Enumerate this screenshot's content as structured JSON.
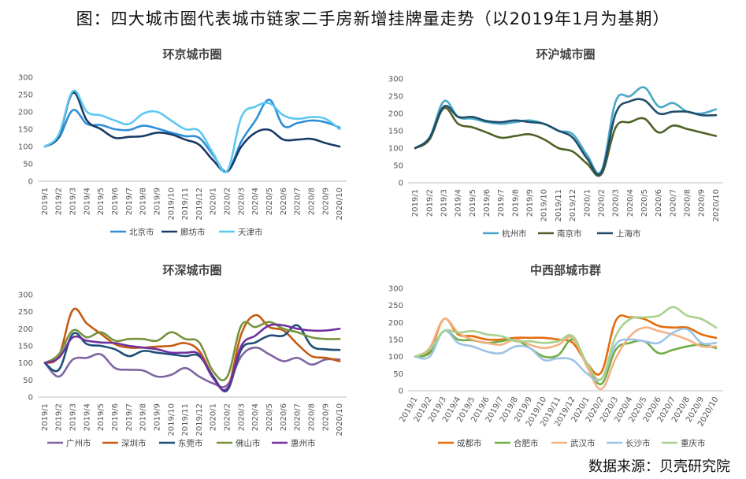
{
  "title": "图：四大城市圈代表城市链家二手房新增挂牌量走势（以2019年1月为基期）",
  "source": "数据来源：贝壳研究院",
  "chart_data": [
    {
      "type": "line",
      "title": "环京城市圈",
      "ylim": [
        0,
        300
      ],
      "yticks": [
        0,
        50,
        100,
        150,
        200,
        250,
        300
      ],
      "categories": [
        "2019/1",
        "2019/2",
        "2019/3",
        "2019/4",
        "2019/5",
        "2019/6",
        "2019/7",
        "2019/8",
        "2019/9",
        "2019/10",
        "2019/11",
        "2019/12",
        "2020/1",
        "2020/2",
        "2020/3",
        "2020/4",
        "2020/5",
        "2020/6",
        "2020/7",
        "2020/8",
        "2020/9",
        "2020/10"
      ],
      "series": [
        {
          "name": "北京市",
          "color": "#2e8fd8",
          "values": [
            100,
            125,
            205,
            165,
            162,
            150,
            148,
            160,
            152,
            140,
            130,
            125,
            75,
            28,
            115,
            175,
            235,
            160,
            168,
            175,
            170,
            155
          ]
        },
        {
          "name": "廊坊市",
          "color": "#1a3a66",
          "values": [
            100,
            130,
            255,
            175,
            150,
            125,
            128,
            130,
            140,
            135,
            120,
            105,
            60,
            28,
            100,
            140,
            148,
            120,
            120,
            122,
            110,
            100
          ]
        },
        {
          "name": "天津市",
          "color": "#5cc8f2",
          "values": [
            100,
            135,
            260,
            200,
            190,
            175,
            165,
            195,
            200,
            175,
            150,
            145,
            80,
            30,
            185,
            215,
            225,
            190,
            180,
            185,
            180,
            150
          ]
        }
      ]
    },
    {
      "type": "line",
      "title": "环沪城市圈",
      "ylim": [
        0,
        300
      ],
      "yticks": [
        0,
        50,
        100,
        150,
        200,
        250,
        300
      ],
      "categories": [
        "2019/1",
        "2019/2",
        "2019/3",
        "2019/4",
        "2019/5",
        "2019/6",
        "2019/7",
        "2019/8",
        "2019/9",
        "2019/10",
        "2019/11",
        "2019/12",
        "2020/1",
        "2020/2",
        "2020/3",
        "2020/4",
        "2020/5",
        "2020/6",
        "2020/7",
        "2020/8",
        "2020/9",
        "2020/10"
      ],
      "series": [
        {
          "name": "杭州市",
          "color": "#4aa8c8",
          "values": [
            100,
            130,
            235,
            190,
            185,
            175,
            170,
            175,
            180,
            170,
            150,
            140,
            80,
            35,
            235,
            250,
            275,
            220,
            230,
            205,
            200,
            212
          ]
        },
        {
          "name": "南京市",
          "color": "#4f6228",
          "values": [
            100,
            125,
            215,
            170,
            160,
            145,
            130,
            135,
            140,
            125,
            100,
            90,
            55,
            25,
            160,
            175,
            185,
            145,
            165,
            155,
            145,
            135
          ]
        },
        {
          "name": "上海市",
          "color": "#1f4e6b",
          "values": [
            100,
            130,
            220,
            190,
            190,
            178,
            175,
            180,
            175,
            170,
            150,
            130,
            70,
            30,
            200,
            235,
            238,
            200,
            205,
            205,
            195,
            195
          ]
        }
      ]
    },
    {
      "type": "line",
      "title": "环深城市圈",
      "ylim": [
        0,
        300
      ],
      "yticks": [
        0,
        50,
        100,
        150,
        200,
        250,
        300
      ],
      "categories": [
        "2019/1",
        "2019/2",
        "2019/3",
        "2019/4",
        "2019/5",
        "2019/6",
        "2019/7",
        "2019/8",
        "2019/9",
        "2019/10",
        "2019/11",
        "2019/12",
        "2020/1",
        "2020/2",
        "2020/3",
        "2020/4",
        "2020/5",
        "2020/6",
        "2020/7",
        "2020/8",
        "2020/9",
        "2020/10"
      ],
      "series": [
        {
          "name": "广州市",
          "color": "#8064a2",
          "values": [
            100,
            60,
            110,
            115,
            125,
            85,
            80,
            78,
            60,
            65,
            85,
            60,
            40,
            35,
            120,
            145,
            125,
            105,
            115,
            95,
            110,
            110
          ]
        },
        {
          "name": "深圳市",
          "color": "#c55a11",
          "values": [
            100,
            120,
            255,
            215,
            185,
            155,
            145,
            145,
            148,
            150,
            158,
            135,
            60,
            25,
            185,
            240,
            205,
            195,
            155,
            120,
            115,
            105
          ]
        },
        {
          "name": "东莞市",
          "color": "#1f4e79",
          "values": [
            100,
            80,
            185,
            155,
            150,
            140,
            120,
            135,
            130,
            125,
            120,
            120,
            60,
            20,
            140,
            160,
            180,
            180,
            210,
            150,
            140,
            138
          ]
        },
        {
          "name": "佛山市",
          "color": "#76933c",
          "values": [
            100,
            125,
            195,
            175,
            190,
            165,
            170,
            170,
            165,
            190,
            170,
            160,
            75,
            60,
            210,
            205,
            220,
            200,
            190,
            175,
            170,
            170
          ]
        },
        {
          "name": "惠州市",
          "color": "#7030a0",
          "values": [
            100,
            115,
            175,
            165,
            160,
            158,
            150,
            145,
            140,
            130,
            130,
            125,
            55,
            25,
            150,
            180,
            210,
            210,
            200,
            195,
            195,
            200
          ]
        }
      ]
    },
    {
      "type": "line",
      "title": "中西部城市群",
      "ylim": [
        0,
        300
      ],
      "yticks": [
        0,
        50,
        100,
        150,
        200,
        250,
        300
      ],
      "categories": [
        "2019/1",
        "2019/2",
        "2019/3",
        "2019/4",
        "2019/5",
        "2019/6",
        "2019/7",
        "2019/8",
        "2019/9",
        "2019/10",
        "2019/11",
        "2019/12",
        "2020/1",
        "2020/2",
        "2020/3",
        "2020/4",
        "2020/5",
        "2020/6",
        "2020/7",
        "2020/8",
        "2020/9",
        "2020/10"
      ],
      "series": [
        {
          "name": "成都市",
          "color": "#e46c0a",
          "values": [
            100,
            115,
            210,
            165,
            160,
            150,
            150,
            155,
            155,
            155,
            150,
            140,
            80,
            55,
            205,
            215,
            210,
            190,
            185,
            185,
            165,
            155
          ]
        },
        {
          "name": "合肥市",
          "color": "#70ad47",
          "values": [
            100,
            110,
            175,
            150,
            148,
            140,
            145,
            150,
            125,
            100,
            105,
            150,
            75,
            20,
            120,
            140,
            145,
            110,
            120,
            130,
            135,
            125
          ]
        },
        {
          "name": "武汉市",
          "color": "#f4b183",
          "values": [
            100,
            125,
            210,
            170,
            150,
            140,
            135,
            150,
            135,
            125,
            135,
            155,
            70,
            5,
            95,
            160,
            185,
            175,
            165,
            150,
            130,
            130
          ]
        },
        {
          "name": "长沙市",
          "color": "#9dc3e6",
          "values": [
            100,
            100,
            175,
            140,
            130,
            115,
            110,
            130,
            125,
            90,
            95,
            90,
            50,
            35,
            135,
            150,
            145,
            140,
            170,
            180,
            140,
            140
          ]
        },
        {
          "name": "重庆市",
          "color": "#a9d18e",
          "values": [
            100,
            120,
            175,
            170,
            175,
            165,
            160,
            145,
            145,
            140,
            145,
            160,
            80,
            35,
            160,
            210,
            215,
            220,
            245,
            220,
            210,
            185
          ]
        }
      ]
    }
  ]
}
